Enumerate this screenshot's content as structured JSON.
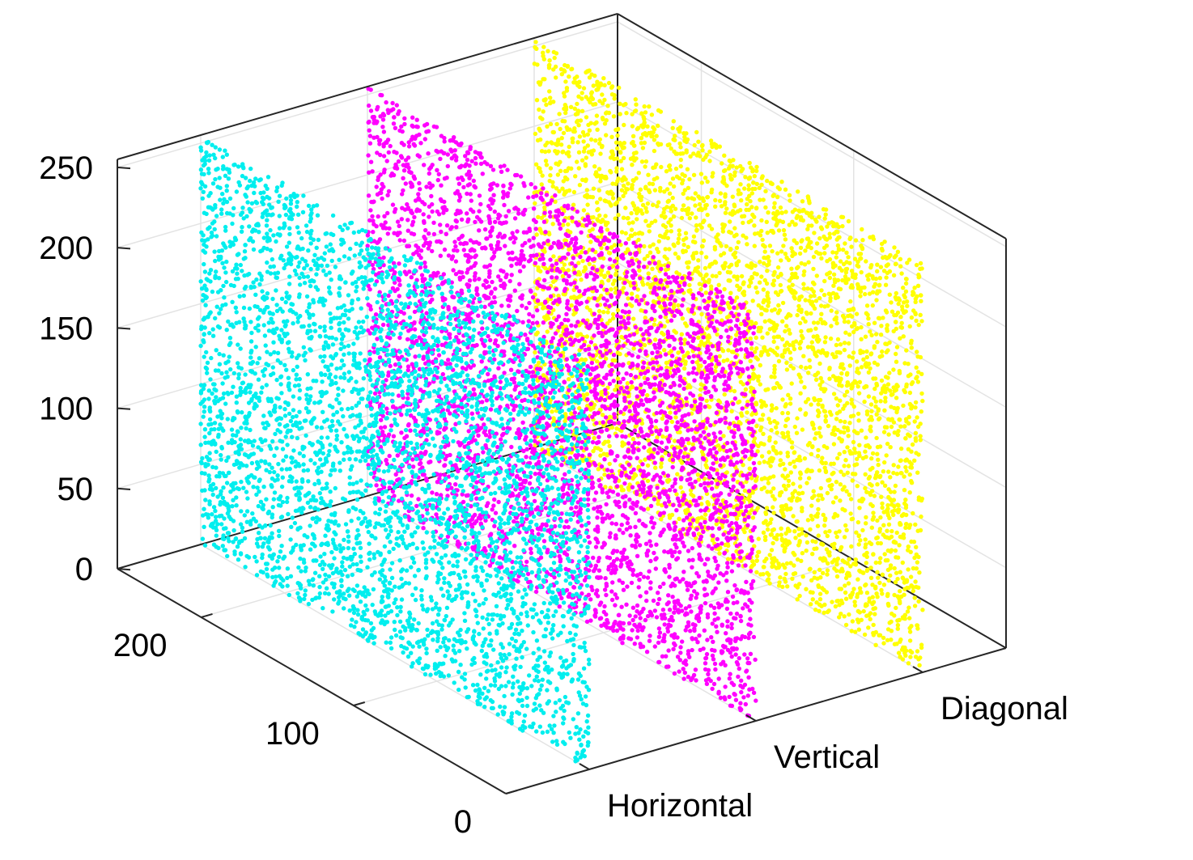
{
  "chart_data": {
    "type": "scatter",
    "title": "",
    "projection": "3d",
    "grid": true,
    "x_axis": {
      "categories": [
        "Horizontal",
        "Vertical",
        "Diagonal"
      ]
    },
    "y_axis": {
      "range": [
        0,
        255
      ],
      "ticks": [
        0,
        100,
        200
      ]
    },
    "z_axis": {
      "range": [
        0,
        255
      ],
      "ticks": [
        0,
        50,
        100,
        150,
        200,
        250
      ]
    },
    "series": [
      {
        "category": "Horizontal",
        "color": "#00EEEE",
        "x": 1,
        "y_range": [
          0,
          255
        ],
        "z_range": [
          0,
          255
        ]
      },
      {
        "category": "Vertical",
        "color": "#FF00FF",
        "x": 2,
        "y_range": [
          0,
          255
        ],
        "z_range": [
          0,
          255
        ]
      },
      {
        "category": "Diagonal",
        "color": "#FFFF00",
        "x": 3,
        "y_range": [
          0,
          255
        ],
        "z_range": [
          0,
          255
        ]
      }
    ]
  }
}
